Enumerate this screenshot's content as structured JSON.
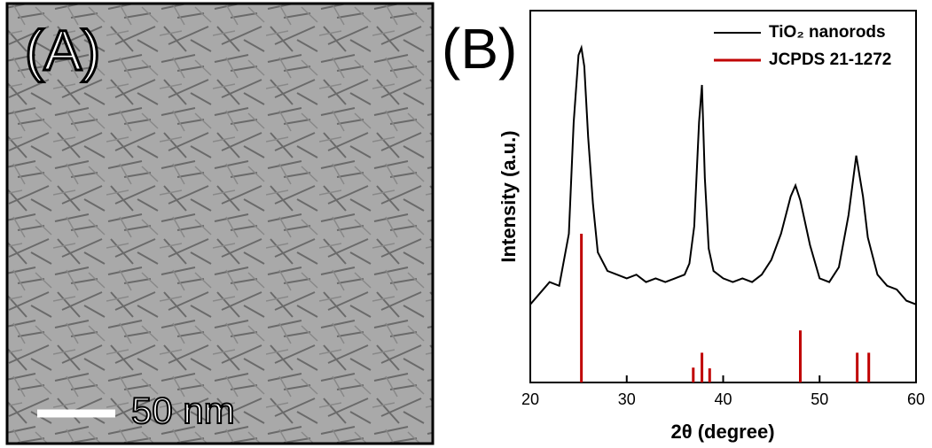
{
  "panel_a": {
    "label": "(A)",
    "scale_bar": "50 nm"
  },
  "chart_data": {
    "type": "line",
    "panel_label": "(B)",
    "xlabel": "2θ (degree)",
    "ylabel": "Intensity (a.u.)",
    "xlim": [
      20,
      60
    ],
    "xticks": [
      20,
      30,
      40,
      50,
      60
    ],
    "ylim": [
      0,
      100
    ],
    "series": [
      {
        "name": "TiO₂ nanorods",
        "color": "#000000",
        "style": "line",
        "x": [
          20,
          21,
          22,
          23,
          24,
          24.5,
          25,
          25.3,
          25.6,
          26,
          26.5,
          27,
          28,
          29,
          30,
          31,
          32,
          33,
          34,
          35,
          36,
          36.5,
          37,
          37.5,
          37.8,
          38.1,
          38.5,
          39,
          40,
          41,
          42,
          43,
          44,
          45,
          46,
          47,
          47.5,
          48,
          49,
          50,
          51,
          52,
          53,
          53.8,
          54.5,
          55,
          56,
          57,
          58,
          59,
          60
        ],
        "values": [
          21,
          24,
          27,
          26,
          40,
          70,
          88,
          90,
          85,
          66,
          48,
          35,
          30,
          29,
          28,
          29,
          27,
          28,
          27,
          28,
          29,
          32,
          42,
          70,
          80,
          55,
          36,
          30,
          28,
          27,
          28,
          27,
          29,
          33,
          40,
          50,
          53,
          49,
          37,
          28,
          27,
          31,
          45,
          61,
          50,
          39,
          29,
          26,
          25,
          22,
          21
        ]
      },
      {
        "name": "JCPDS 21-1272",
        "color": "#c00000",
        "style": "stick",
        "x": [
          25.3,
          36.9,
          37.8,
          38.6,
          48.0,
          53.9,
          55.1
        ],
        "values": [
          40,
          4,
          8,
          3.8,
          14,
          8,
          8
        ]
      }
    ]
  }
}
